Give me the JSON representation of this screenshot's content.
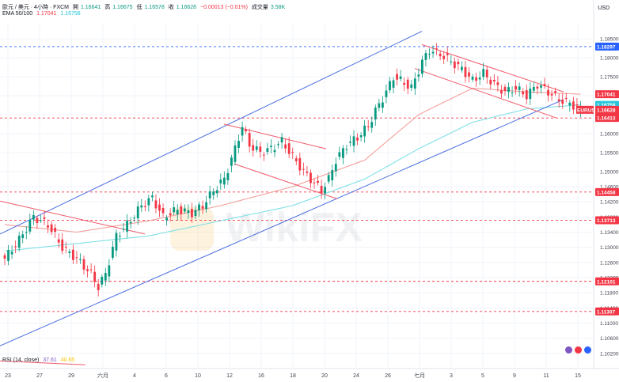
{
  "header": {
    "symbol_line": "歐元 / 美元 · 4小時 · FXCM",
    "open_label": "開",
    "open_value": "1.16641",
    "high_label": "高",
    "high_value": "1.16675",
    "low_label": "低",
    "low_value": "1.16578",
    "close_label": "收",
    "close_value": "1.16628",
    "change": "−0.00013 (−0.01%)",
    "volume_label": "成交量",
    "volume_value": "3.58K",
    "ema_label": "EMA 50/100",
    "ema50_value": "1.17041",
    "ema100_value": "1.16758"
  },
  "currency": "USD",
  "watermark": "WikiFX",
  "rsi": {
    "label": "RSI (14, close)",
    "value1": "37.61",
    "value2": "40.65"
  },
  "colors": {
    "bull": "#089981",
    "bear": "#f23645",
    "ema50": "#f4a09a",
    "ema100": "#7fe0e6",
    "channel": "#4a6ee0",
    "trend": "#ef5a6a",
    "level": "#f23645",
    "grid": "#f0f3fa"
  },
  "chart_data": {
    "type": "candlestick",
    "timeframe": "4h",
    "y_ticks": [
      "1.18500",
      "1.18000",
      "1.17500",
      "1.17000",
      "1.16500",
      "1.16000",
      "1.15500",
      "1.15000",
      "1.14600",
      "1.14200",
      "1.13800",
      "1.13400",
      "1.13000",
      "1.12600",
      "1.12200",
      "1.11800",
      "1.11400",
      "1.11000",
      "1.10600",
      "1.10200"
    ],
    "x_ticks": [
      "23",
      "27",
      "29",
      "六月",
      "4",
      "6",
      "10",
      "12",
      "16",
      "18",
      "20",
      "24",
      "26",
      "七月",
      "3",
      "5",
      "9",
      "11",
      "15"
    ],
    "ylim": [
      1.098,
      1.189
    ],
    "price_tags": [
      {
        "label": "1.18297",
        "value": 1.18297,
        "color": "#2962ff"
      },
      {
        "label": "1.17041",
        "value": 1.17041,
        "color": "#f23645"
      },
      {
        "label": "1.16758",
        "value": 1.16758,
        "color": "#26c6da"
      },
      {
        "label": "EURUSD",
        "value": 1.16628,
        "color": "#f23645",
        "lines": [
          "1.16628",
          "01:19:35"
        ]
      },
      {
        "label": "1.16413",
        "value": 1.16413,
        "color": "#f23645"
      },
      {
        "label": "1.14458",
        "value": 1.14458,
        "color": "#f23645"
      },
      {
        "label": "1.13713",
        "value": 1.13713,
        "color": "#f23645"
      },
      {
        "label": "1.12101",
        "value": 1.12101,
        "color": "#f23645"
      },
      {
        "label": "1.11307",
        "value": 1.11307,
        "color": "#f23645"
      }
    ],
    "horizontal_levels": [
      1.18297,
      1.16413,
      1.14458,
      1.13713,
      1.12101,
      1.11307
    ],
    "close_path": [
      [
        0,
        1.127
      ],
      [
        4,
        1.132
      ],
      [
        8,
        1.138
      ],
      [
        12,
        1.136
      ],
      [
        16,
        1.13
      ],
      [
        20,
        1.127
      ],
      [
        24,
        1.123
      ],
      [
        26,
        1.1195
      ],
      [
        28,
        1.123
      ],
      [
        31,
        1.133
      ],
      [
        34,
        1.136
      ],
      [
        38,
        1.141
      ],
      [
        41,
        1.143
      ],
      [
        44,
        1.138
      ],
      [
        48,
        1.14
      ],
      [
        52,
        1.139
      ],
      [
        55,
        1.141
      ],
      [
        58,
        1.145
      ],
      [
        61,
        1.148
      ],
      [
        64,
        1.156
      ],
      [
        66,
        1.162
      ],
      [
        68,
        1.157
      ],
      [
        71,
        1.155
      ],
      [
        74,
        1.156
      ],
      [
        77,
        1.158
      ],
      [
        80,
        1.154
      ],
      [
        83,
        1.15
      ],
      [
        86,
        1.147
      ],
      [
        88,
        1.145
      ],
      [
        90,
        1.148
      ],
      [
        92,
        1.153
      ],
      [
        95,
        1.157
      ],
      [
        98,
        1.159
      ],
      [
        101,
        1.162
      ],
      [
        103,
        1.166
      ],
      [
        106,
        1.171
      ],
      [
        108,
        1.175
      ],
      [
        110,
        1.174
      ],
      [
        113,
        1.172
      ],
      [
        116,
        1.179
      ],
      [
        118,
        1.182
      ],
      [
        121,
        1.181
      ],
      [
        124,
        1.179
      ],
      [
        127,
        1.177
      ],
      [
        130,
        1.174
      ],
      [
        133,
        1.176
      ],
      [
        136,
        1.173
      ],
      [
        139,
        1.171
      ],
      [
        142,
        1.172
      ],
      [
        145,
        1.17
      ],
      [
        148,
        1.173
      ],
      [
        151,
        1.171
      ],
      [
        154,
        1.169
      ],
      [
        157,
        1.168
      ],
      [
        160,
        1.1663
      ]
    ],
    "ema50_path": [
      [
        0,
        1.136
      ],
      [
        20,
        1.134
      ],
      [
        40,
        1.137
      ],
      [
        60,
        1.141
      ],
      [
        80,
        1.146
      ],
      [
        100,
        1.153
      ],
      [
        115,
        1.165
      ],
      [
        130,
        1.172
      ],
      [
        145,
        1.171
      ],
      [
        160,
        1.1704
      ]
    ],
    "ema100_path": [
      [
        0,
        1.129
      ],
      [
        20,
        1.131
      ],
      [
        40,
        1.133
      ],
      [
        60,
        1.137
      ],
      [
        80,
        1.141
      ],
      [
        100,
        1.148
      ],
      [
        115,
        1.156
      ],
      [
        130,
        1.163
      ],
      [
        145,
        1.1665
      ],
      [
        160,
        1.1676
      ]
    ],
    "rsi_values": {
      "rsi": 37.61,
      "ma": 40.65
    }
  }
}
